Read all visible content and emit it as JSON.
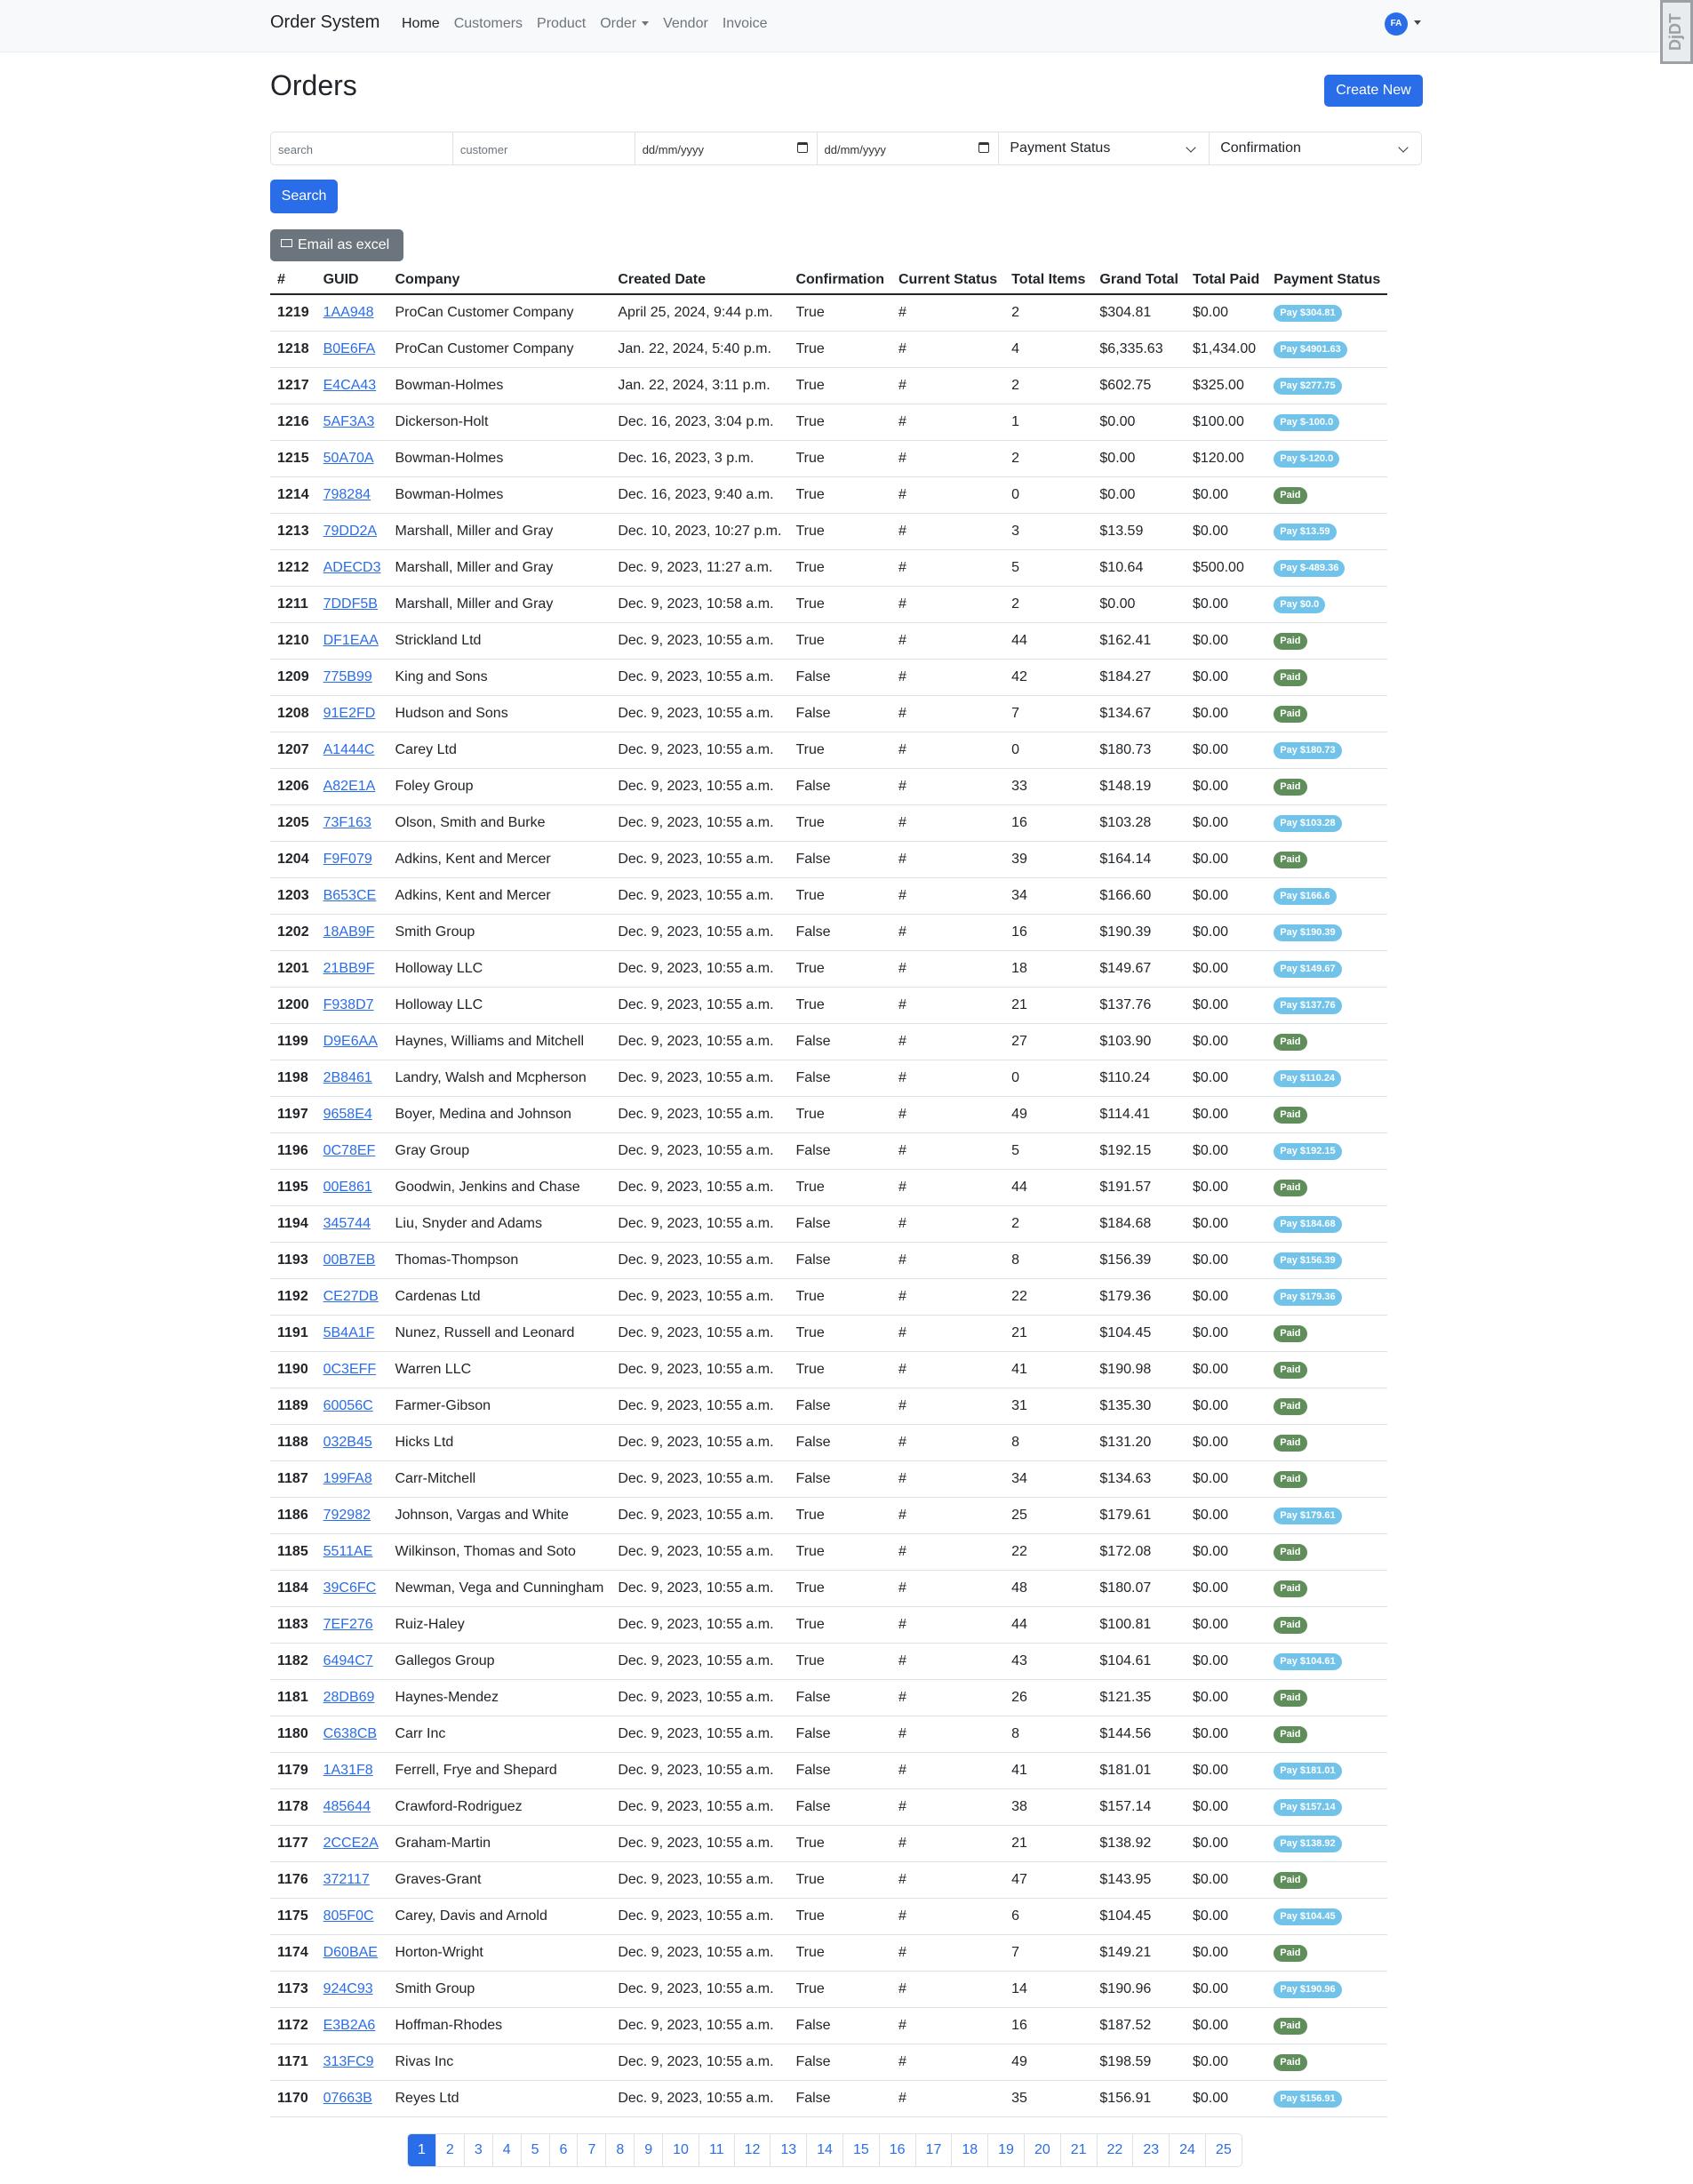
{
  "navbar": {
    "brand": "Order System",
    "links": [
      "Home",
      "Customers",
      "Product",
      "Order",
      "Vendor",
      "Invoice"
    ],
    "avatar_initials": "FA",
    "debug_toolbar": "DjDT"
  },
  "page": {
    "title": "Orders",
    "create_label": "Create New"
  },
  "filters": {
    "search_placeholder": "search",
    "customer_placeholder": "customer",
    "date_from": "dd/mm/yyyy",
    "date_to": "dd/mm/yyyy",
    "payment_status": "Payment Status",
    "confirmation": "Confirmation",
    "search_button": "Search",
    "email_button": "Email as excel"
  },
  "table": {
    "headers": [
      "#",
      "GUID",
      "Company",
      "Created Date",
      "Confirmation",
      "Current Status",
      "Total Items",
      "Grand Total",
      "Total Paid",
      "Payment Status"
    ],
    "rows": [
      [
        "1219",
        "1AA948",
        "ProCan Customer Company",
        "April 25, 2024, 9:44 p.m.",
        "True",
        "#",
        "2",
        "$304.81",
        "$0.00",
        "Pay $304.81"
      ],
      [
        "1218",
        "B0E6FA",
        "ProCan Customer Company",
        "Jan. 22, 2024, 5:40 p.m.",
        "True",
        "#",
        "4",
        "$6,335.63",
        "$1,434.00",
        "Pay $4901.63"
      ],
      [
        "1217",
        "E4CA43",
        "Bowman-Holmes",
        "Jan. 22, 2024, 3:11 p.m.",
        "True",
        "#",
        "2",
        "$602.75",
        "$325.00",
        "Pay $277.75"
      ],
      [
        "1216",
        "5AF3A3",
        "Dickerson-Holt",
        "Dec. 16, 2023, 3:04 p.m.",
        "True",
        "#",
        "1",
        "$0.00",
        "$100.00",
        "Pay $-100.0"
      ],
      [
        "1215",
        "50A70A",
        "Bowman-Holmes",
        "Dec. 16, 2023, 3 p.m.",
        "True",
        "#",
        "2",
        "$0.00",
        "$120.00",
        "Pay $-120.0"
      ],
      [
        "1214",
        "798284",
        "Bowman-Holmes",
        "Dec. 16, 2023, 9:40 a.m.",
        "True",
        "#",
        "0",
        "$0.00",
        "$0.00",
        "Paid"
      ],
      [
        "1213",
        "79DD2A",
        "Marshall, Miller and Gray",
        "Dec. 10, 2023, 10:27 p.m.",
        "True",
        "#",
        "3",
        "$13.59",
        "$0.00",
        "Pay $13.59"
      ],
      [
        "1212",
        "ADECD3",
        "Marshall, Miller and Gray",
        "Dec. 9, 2023, 11:27 a.m.",
        "True",
        "#",
        "5",
        "$10.64",
        "$500.00",
        "Pay $-489.36"
      ],
      [
        "1211",
        "7DDF5B",
        "Marshall, Miller and Gray",
        "Dec. 9, 2023, 10:58 a.m.",
        "True",
        "#",
        "2",
        "$0.00",
        "$0.00",
        "Pay $0.0"
      ],
      [
        "1210",
        "DF1EAA",
        "Strickland Ltd",
        "Dec. 9, 2023, 10:55 a.m.",
        "True",
        "#",
        "44",
        "$162.41",
        "$0.00",
        "Paid"
      ],
      [
        "1209",
        "775B99",
        "King and Sons",
        "Dec. 9, 2023, 10:55 a.m.",
        "False",
        "#",
        "42",
        "$184.27",
        "$0.00",
        "Paid"
      ],
      [
        "1208",
        "91E2FD",
        "Hudson and Sons",
        "Dec. 9, 2023, 10:55 a.m.",
        "False",
        "#",
        "7",
        "$134.67",
        "$0.00",
        "Paid"
      ],
      [
        "1207",
        "A1444C",
        "Carey Ltd",
        "Dec. 9, 2023, 10:55 a.m.",
        "True",
        "#",
        "0",
        "$180.73",
        "$0.00",
        "Pay $180.73"
      ],
      [
        "1206",
        "A82E1A",
        "Foley Group",
        "Dec. 9, 2023, 10:55 a.m.",
        "False",
        "#",
        "33",
        "$148.19",
        "$0.00",
        "Paid"
      ],
      [
        "1205",
        "73F163",
        "Olson, Smith and Burke",
        "Dec. 9, 2023, 10:55 a.m.",
        "True",
        "#",
        "16",
        "$103.28",
        "$0.00",
        "Pay $103.28"
      ],
      [
        "1204",
        "F9F079",
        "Adkins, Kent and Mercer",
        "Dec. 9, 2023, 10:55 a.m.",
        "False",
        "#",
        "39",
        "$164.14",
        "$0.00",
        "Paid"
      ],
      [
        "1203",
        "B653CE",
        "Adkins, Kent and Mercer",
        "Dec. 9, 2023, 10:55 a.m.",
        "True",
        "#",
        "34",
        "$166.60",
        "$0.00",
        "Pay $166.6"
      ],
      [
        "1202",
        "18AB9F",
        "Smith Group",
        "Dec. 9, 2023, 10:55 a.m.",
        "False",
        "#",
        "16",
        "$190.39",
        "$0.00",
        "Pay $190.39"
      ],
      [
        "1201",
        "21BB9F",
        "Holloway LLC",
        "Dec. 9, 2023, 10:55 a.m.",
        "True",
        "#",
        "18",
        "$149.67",
        "$0.00",
        "Pay $149.67"
      ],
      [
        "1200",
        "F938D7",
        "Holloway LLC",
        "Dec. 9, 2023, 10:55 a.m.",
        "True",
        "#",
        "21",
        "$137.76",
        "$0.00",
        "Pay $137.76"
      ],
      [
        "1199",
        "D9E6AA",
        "Haynes, Williams and Mitchell",
        "Dec. 9, 2023, 10:55 a.m.",
        "False",
        "#",
        "27",
        "$103.90",
        "$0.00",
        "Paid"
      ],
      [
        "1198",
        "2B8461",
        "Landry, Walsh and Mcpherson",
        "Dec. 9, 2023, 10:55 a.m.",
        "False",
        "#",
        "0",
        "$110.24",
        "$0.00",
        "Pay $110.24"
      ],
      [
        "1197",
        "9658E4",
        "Boyer, Medina and Johnson",
        "Dec. 9, 2023, 10:55 a.m.",
        "True",
        "#",
        "49",
        "$114.41",
        "$0.00",
        "Paid"
      ],
      [
        "1196",
        "0C78EF",
        "Gray Group",
        "Dec. 9, 2023, 10:55 a.m.",
        "False",
        "#",
        "5",
        "$192.15",
        "$0.00",
        "Pay $192.15"
      ],
      [
        "1195",
        "00E861",
        "Goodwin, Jenkins and Chase",
        "Dec. 9, 2023, 10:55 a.m.",
        "True",
        "#",
        "44",
        "$191.57",
        "$0.00",
        "Paid"
      ],
      [
        "1194",
        "345744",
        "Liu, Snyder and Adams",
        "Dec. 9, 2023, 10:55 a.m.",
        "False",
        "#",
        "2",
        "$184.68",
        "$0.00",
        "Pay $184.68"
      ],
      [
        "1193",
        "00B7EB",
        "Thomas-Thompson",
        "Dec. 9, 2023, 10:55 a.m.",
        "False",
        "#",
        "8",
        "$156.39",
        "$0.00",
        "Pay $156.39"
      ],
      [
        "1192",
        "CE27DB",
        "Cardenas Ltd",
        "Dec. 9, 2023, 10:55 a.m.",
        "True",
        "#",
        "22",
        "$179.36",
        "$0.00",
        "Pay $179.36"
      ],
      [
        "1191",
        "5B4A1F",
        "Nunez, Russell and Leonard",
        "Dec. 9, 2023, 10:55 a.m.",
        "True",
        "#",
        "21",
        "$104.45",
        "$0.00",
        "Paid"
      ],
      [
        "1190",
        "0C3EFF",
        "Warren LLC",
        "Dec. 9, 2023, 10:55 a.m.",
        "True",
        "#",
        "41",
        "$190.98",
        "$0.00",
        "Paid"
      ],
      [
        "1189",
        "60056C",
        "Farmer-Gibson",
        "Dec. 9, 2023, 10:55 a.m.",
        "False",
        "#",
        "31",
        "$135.30",
        "$0.00",
        "Paid"
      ],
      [
        "1188",
        "032B45",
        "Hicks Ltd",
        "Dec. 9, 2023, 10:55 a.m.",
        "False",
        "#",
        "8",
        "$131.20",
        "$0.00",
        "Paid"
      ],
      [
        "1187",
        "199FA8",
        "Carr-Mitchell",
        "Dec. 9, 2023, 10:55 a.m.",
        "False",
        "#",
        "34",
        "$134.63",
        "$0.00",
        "Paid"
      ],
      [
        "1186",
        "792982",
        "Johnson, Vargas and White",
        "Dec. 9, 2023, 10:55 a.m.",
        "True",
        "#",
        "25",
        "$179.61",
        "$0.00",
        "Pay $179.61"
      ],
      [
        "1185",
        "5511AE",
        "Wilkinson, Thomas and Soto",
        "Dec. 9, 2023, 10:55 a.m.",
        "True",
        "#",
        "22",
        "$172.08",
        "$0.00",
        "Paid"
      ],
      [
        "1184",
        "39C6FC",
        "Newman, Vega and Cunningham",
        "Dec. 9, 2023, 10:55 a.m.",
        "True",
        "#",
        "48",
        "$180.07",
        "$0.00",
        "Paid"
      ],
      [
        "1183",
        "7EF276",
        "Ruiz-Haley",
        "Dec. 9, 2023, 10:55 a.m.",
        "True",
        "#",
        "44",
        "$100.81",
        "$0.00",
        "Paid"
      ],
      [
        "1182",
        "6494C7",
        "Gallegos Group",
        "Dec. 9, 2023, 10:55 a.m.",
        "True",
        "#",
        "43",
        "$104.61",
        "$0.00",
        "Pay $104.61"
      ],
      [
        "1181",
        "28DB69",
        "Haynes-Mendez",
        "Dec. 9, 2023, 10:55 a.m.",
        "False",
        "#",
        "26",
        "$121.35",
        "$0.00",
        "Paid"
      ],
      [
        "1180",
        "C638CB",
        "Carr Inc",
        "Dec. 9, 2023, 10:55 a.m.",
        "False",
        "#",
        "8",
        "$144.56",
        "$0.00",
        "Paid"
      ],
      [
        "1179",
        "1A31F8",
        "Ferrell, Frye and Shepard",
        "Dec. 9, 2023, 10:55 a.m.",
        "False",
        "#",
        "41",
        "$181.01",
        "$0.00",
        "Pay $181.01"
      ],
      [
        "1178",
        "485644",
        "Crawford-Rodriguez",
        "Dec. 9, 2023, 10:55 a.m.",
        "False",
        "#",
        "38",
        "$157.14",
        "$0.00",
        "Pay $157.14"
      ],
      [
        "1177",
        "2CCE2A",
        "Graham-Martin",
        "Dec. 9, 2023, 10:55 a.m.",
        "True",
        "#",
        "21",
        "$138.92",
        "$0.00",
        "Pay $138.92"
      ],
      [
        "1176",
        "372117",
        "Graves-Grant",
        "Dec. 9, 2023, 10:55 a.m.",
        "True",
        "#",
        "47",
        "$143.95",
        "$0.00",
        "Paid"
      ],
      [
        "1175",
        "805F0C",
        "Carey, Davis and Arnold",
        "Dec. 9, 2023, 10:55 a.m.",
        "True",
        "#",
        "6",
        "$104.45",
        "$0.00",
        "Pay $104.45"
      ],
      [
        "1174",
        "D60BAE",
        "Horton-Wright",
        "Dec. 9, 2023, 10:55 a.m.",
        "True",
        "#",
        "7",
        "$149.21",
        "$0.00",
        "Paid"
      ],
      [
        "1173",
        "924C93",
        "Smith Group",
        "Dec. 9, 2023, 10:55 a.m.",
        "True",
        "#",
        "14",
        "$190.96",
        "$0.00",
        "Pay $190.96"
      ],
      [
        "1172",
        "E3B2A6",
        "Hoffman-Rhodes",
        "Dec. 9, 2023, 10:55 a.m.",
        "False",
        "#",
        "16",
        "$187.52",
        "$0.00",
        "Paid"
      ],
      [
        "1171",
        "313FC9",
        "Rivas Inc",
        "Dec. 9, 2023, 10:55 a.m.",
        "False",
        "#",
        "49",
        "$198.59",
        "$0.00",
        "Paid"
      ],
      [
        "1170",
        "07663B",
        "Reyes Ltd",
        "Dec. 9, 2023, 10:55 a.m.",
        "False",
        "#",
        "35",
        "$156.91",
        "$0.00",
        "Pay $156.91"
      ]
    ]
  },
  "pagination": {
    "pages": [
      "1",
      "2",
      "3",
      "4",
      "5",
      "6",
      "7",
      "8",
      "9",
      "10",
      "11",
      "12",
      "13",
      "14",
      "15",
      "16",
      "17",
      "18",
      "19",
      "20",
      "21",
      "22",
      "23",
      "24",
      "25"
    ],
    "active": "1"
  },
  "colors": {
    "primary": "#2a6de8",
    "secondary": "#6c757d",
    "paid_badge": "#5f8e5a",
    "pay_badge": "#72c3e9"
  }
}
